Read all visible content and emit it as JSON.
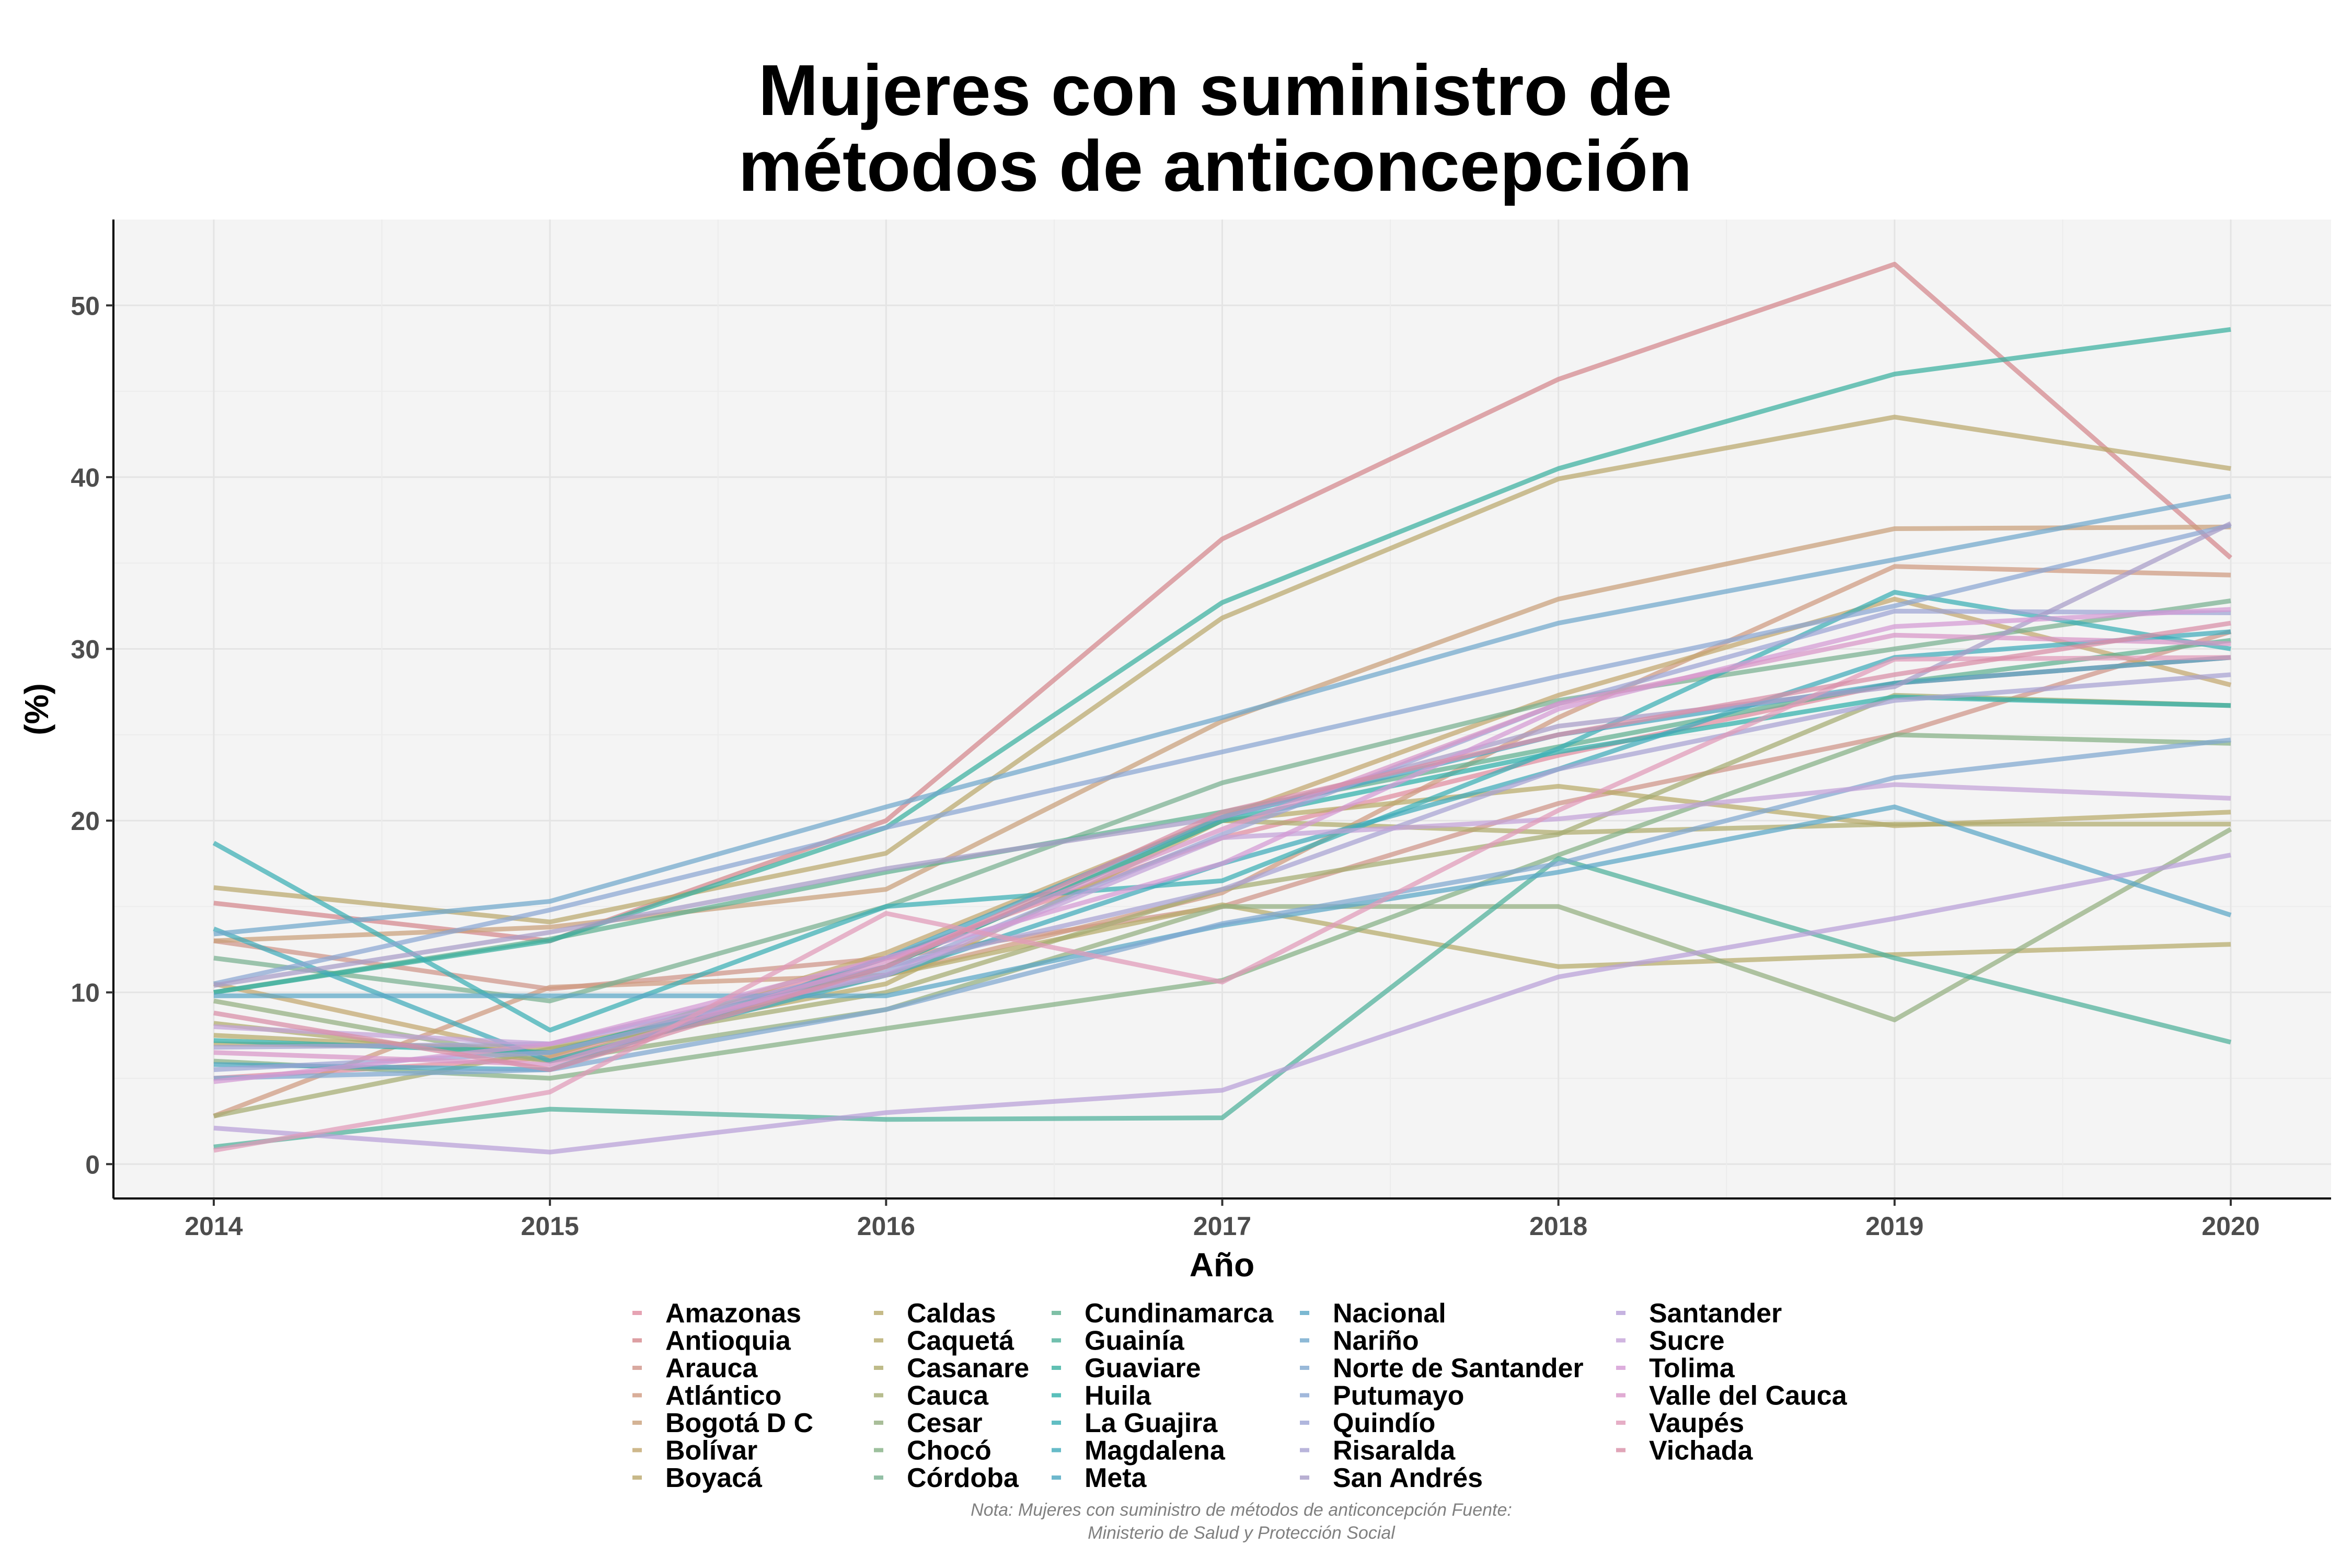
{
  "chart_data": {
    "type": "line",
    "title_lines": [
      "Mujeres con suministro de",
      "métodos de anticoncepción"
    ],
    "xlabel": "Año",
    "ylabel": "(%)",
    "x": [
      2014,
      2015,
      2016,
      2017,
      2018,
      2019,
      2020
    ],
    "x_tick_labels": [
      "2014",
      "2015",
      "2016",
      "2017",
      "2018",
      "2019",
      "2020"
    ],
    "ylim": [
      -2,
      55
    ],
    "y_ticks": [
      0,
      10,
      20,
      30,
      40,
      50
    ],
    "y_tick_labels": [
      "0",
      "10",
      "20",
      "30",
      "40",
      "50"
    ],
    "grid": true,
    "legend_position": "bottom",
    "note_lines": [
      "Nota: Mujeres con suministro de métodos de anticoncepción Fuente:",
      "Ministerio de Salud y Protección Social"
    ],
    "series": [
      {
        "name": "Amazonas",
        "color": "#e08ca0",
        "values": [
          5.0,
          6.2,
          12.0,
          19.0,
          23.8,
          28.0,
          29.5
        ]
      },
      {
        "name": "Antioquia",
        "color": "#d4878c",
        "values": [
          15.2,
          13.0,
          20.0,
          36.4,
          45.7,
          52.4,
          35.3
        ]
      },
      {
        "name": "Arauca",
        "color": "#cf9488",
        "values": [
          13.0,
          10.2,
          12.0,
          15.0,
          21.0,
          25.0,
          31.0
        ]
      },
      {
        "name": "Atlántico",
        "color": "#cf9a80",
        "values": [
          2.8,
          10.3,
          11.0,
          15.8,
          26.0,
          34.8,
          34.3
        ]
      },
      {
        "name": "Bogotá D C",
        "color": "#c9a07a",
        "values": [
          13.0,
          13.8,
          16.0,
          25.8,
          32.9,
          37.0,
          37.1
        ]
      },
      {
        "name": "Bolívar",
        "color": "#c2a66e",
        "values": [
          10.5,
          6.3,
          12.3,
          20.2,
          27.3,
          32.9,
          27.9
        ]
      },
      {
        "name": "Boyacá",
        "color": "#baa86c",
        "values": [
          16.1,
          14.1,
          18.1,
          31.8,
          39.9,
          43.5,
          40.5
        ]
      },
      {
        "name": "Caldas",
        "color": "#b8aa6a",
        "values": [
          7.0,
          6.8,
          10.5,
          20.0,
          22.0,
          19.7,
          20.5
        ]
      },
      {
        "name": "Caquetá",
        "color": "#b5aa6a",
        "values": [
          7.5,
          6.5,
          11.0,
          15.1,
          11.5,
          12.2,
          12.8
        ]
      },
      {
        "name": "Casanare",
        "color": "#aeaa6c",
        "values": [
          8.2,
          6.0,
          11.5,
          20.0,
          19.3,
          19.8,
          19.8
        ]
      },
      {
        "name": "Cauca",
        "color": "#a5ac72",
        "values": [
          2.8,
          6.7,
          10.0,
          16.0,
          19.2,
          27.3,
          26.7
        ]
      },
      {
        "name": "Cesar",
        "color": "#93ae80",
        "values": [
          9.5,
          6.0,
          9.0,
          15.0,
          15.0,
          8.4,
          19.5
        ]
      },
      {
        "name": "Chocó",
        "color": "#85b085",
        "values": [
          6.0,
          5.0,
          7.9,
          10.7,
          18.0,
          25.0,
          24.5
        ]
      },
      {
        "name": "Córdoba",
        "color": "#78b090",
        "values": [
          12.0,
          9.5,
          15.0,
          22.2,
          27.0,
          30.0,
          32.8
        ]
      },
      {
        "name": "Cundinamarca",
        "color": "#5fb090",
        "values": [
          10.0,
          13.1,
          17.0,
          20.5,
          24.3,
          28.0,
          30.5
        ]
      },
      {
        "name": "Guainía",
        "color": "#4eb09a",
        "values": [
          1.0,
          3.2,
          2.6,
          2.7,
          17.8,
          12.0,
          7.1
        ]
      },
      {
        "name": "Guaviare",
        "color": "#3ab0a0",
        "values": [
          10.0,
          13.0,
          19.6,
          32.7,
          40.5,
          46.0,
          48.6
        ]
      },
      {
        "name": "Huila",
        "color": "#2fb0aa",
        "values": [
          7.2,
          6.5,
          11.5,
          20.0,
          24.0,
          27.2,
          26.7
        ]
      },
      {
        "name": "La Guajira",
        "color": "#3aaeb4",
        "values": [
          18.7,
          7.8,
          15.0,
          16.5,
          24.2,
          33.3,
          30.0
        ]
      },
      {
        "name": "Magdalena",
        "color": "#40aaba",
        "values": [
          13.7,
          6.0,
          11.0,
          17.5,
          23.0,
          29.5,
          31.0
        ]
      },
      {
        "name": "Meta",
        "color": "#4aa6c0",
        "values": [
          5.8,
          5.5,
          12.0,
          20.2,
          25.0,
          28.0,
          29.5
        ]
      },
      {
        "name": "Nacional",
        "color": "#5aa6c6",
        "values": [
          9.8,
          9.8,
          9.8,
          13.9,
          17.0,
          20.8,
          14.5
        ]
      },
      {
        "name": "Nariño",
        "color": "#70a8cc",
        "values": [
          13.4,
          15.3,
          20.8,
          26.0,
          31.5,
          35.2,
          38.9
        ]
      },
      {
        "name": "Norte de Santander",
        "color": "#80a8d0",
        "values": [
          5.0,
          5.5,
          9.0,
          14.0,
          17.5,
          22.5,
          24.7
        ]
      },
      {
        "name": "Putumayo",
        "color": "#8aa6d2",
        "values": [
          10.5,
          14.8,
          19.6,
          24.0,
          28.4,
          32.5,
          37.2
        ]
      },
      {
        "name": "Quindío",
        "color": "#9ca4d4",
        "values": [
          5.5,
          6.5,
          11.2,
          19.2,
          26.8,
          32.2,
          32.1
        ]
      },
      {
        "name": "Risaralda",
        "color": "#a8a2d2",
        "values": [
          6.8,
          7.0,
          11.5,
          16.0,
          23.0,
          27.0,
          28.5
        ]
      },
      {
        "name": "San Andrés",
        "color": "#a89cc8",
        "values": [
          10.4,
          13.5,
          17.2,
          20.2,
          25.5,
          27.8,
          37.3
        ]
      },
      {
        "name": "Santander",
        "color": "#b8a0d8",
        "values": [
          2.1,
          0.7,
          3.0,
          4.3,
          10.9,
          14.3,
          18.0
        ]
      },
      {
        "name": "Sucre",
        "color": "#c4a2d8",
        "values": [
          8.0,
          7.0,
          11.0,
          19.0,
          20.1,
          22.1,
          21.3
        ]
      },
      {
        "name": "Tolima",
        "color": "#d49ad4",
        "values": [
          4.8,
          7.0,
          12.0,
          17.5,
          26.5,
          31.3,
          32.3
        ]
      },
      {
        "name": "Valle del Cauca",
        "color": "#d896c8",
        "values": [
          6.5,
          5.8,
          11.8,
          19.5,
          26.8,
          30.8,
          30.3
        ]
      },
      {
        "name": "Vaupés",
        "color": "#e09ab8",
        "values": [
          0.8,
          4.2,
          14.6,
          10.6,
          20.6,
          29.4,
          29.5
        ]
      },
      {
        "name": "Vichada",
        "color": "#d88ea6",
        "values": [
          8.8,
          5.5,
          11.5,
          20.5,
          25.0,
          28.5,
          31.5
        ]
      }
    ]
  }
}
